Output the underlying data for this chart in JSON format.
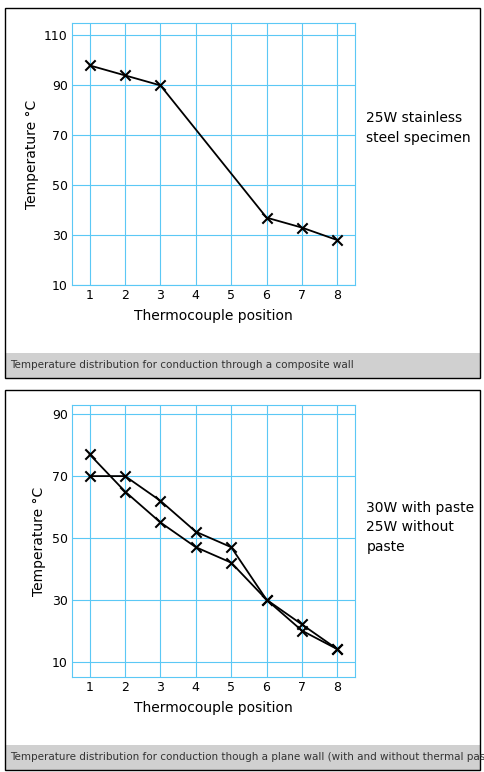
{
  "chart1": {
    "title": "25W stainless\nsteel specimen",
    "xlabel": "Thermocouple position",
    "ylabel": "Temperature °C",
    "x": [
      1,
      2,
      3,
      6,
      7,
      8
    ],
    "y": [
      98,
      94,
      90,
      37,
      33,
      28
    ],
    "yticks": [
      10,
      30,
      50,
      70,
      90,
      110
    ],
    "xticks": [
      1,
      2,
      3,
      4,
      5,
      6,
      7,
      8
    ],
    "ylim": [
      10,
      115
    ],
    "xlim": [
      0.5,
      8.5
    ],
    "caption": "Temperature distribution for conduction through a composite wall"
  },
  "chart2": {
    "title": "30W with paste\n25W without\npaste",
    "xlabel": "Thermocouple position",
    "ylabel": "Temperature °C",
    "series1_x": [
      1,
      2,
      3,
      4,
      5,
      6,
      7,
      8
    ],
    "series1_y": [
      77,
      65,
      55,
      47,
      42,
      30,
      22,
      14
    ],
    "series2_x": [
      1,
      2,
      3,
      4,
      5,
      6,
      7,
      8
    ],
    "series2_y": [
      70,
      70,
      62,
      52,
      47,
      30,
      20,
      14
    ],
    "yticks": [
      10,
      30,
      50,
      70,
      90
    ],
    "xticks": [
      1,
      2,
      3,
      4,
      5,
      6,
      7,
      8
    ],
    "ylim": [
      5,
      93
    ],
    "xlim": [
      0.5,
      8.5
    ],
    "caption": "Temperature distribution for conduction though a plane wall (with and without thermal paste)"
  },
  "grid_color": "#5bc8f5",
  "marker_color": "#000000",
  "line_color": "#000000",
  "bg_color": "#ffffff",
  "caption_bg": "#d0d0d0",
  "border_color": "#000000",
  "outer_bg": "#f0f0f0",
  "axis_label_fontsize": 10,
  "tick_fontsize": 9,
  "annotation_fontsize": 10,
  "caption_fontsize": 7.5
}
